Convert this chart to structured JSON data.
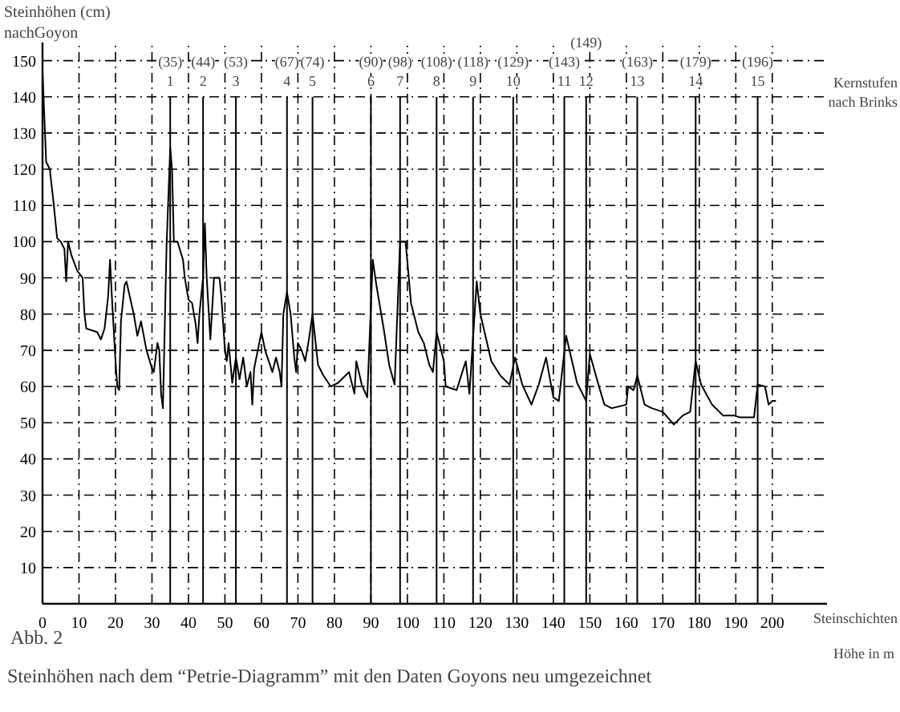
{
  "chart_data": {
    "type": "line",
    "ylabel": "Steinhöhen (cm)\nnachGoyon",
    "xlabel": "Steinschichten",
    "annotations": [
      "Kernstufen\nnach Brinks",
      "Höhe in m",
      "Abb. 2",
      "Steinhöhen nach dem “Petrie-Diagramm” mit den Daten Goyons neu umgezeichnet"
    ],
    "x": [
      0,
      1,
      2,
      3,
      4,
      5,
      6,
      6.5,
      7,
      8,
      9.5,
      11,
      11.5,
      12,
      15,
      16,
      17,
      18,
      18.5,
      19,
      20,
      20.5,
      21,
      21.5,
      22.5,
      23,
      25,
      26,
      27,
      28.5,
      30,
      30.5,
      31.5,
      32,
      32.5,
      33,
      34,
      35,
      35.5,
      36,
      37,
      38.5,
      39,
      40,
      41,
      42,
      42.5,
      43,
      44,
      44.5,
      45,
      46,
      47,
      48.5,
      49,
      50,
      50.5,
      51,
      52,
      53,
      54,
      55,
      56,
      57,
      57.5,
      58,
      59,
      60,
      61,
      62,
      63,
      64,
      65,
      65.5,
      66,
      67,
      68,
      69,
      69.5,
      70,
      71,
      72,
      73,
      74,
      75.5,
      77,
      79,
      81,
      84,
      85.5,
      86,
      87.5,
      89,
      90.5,
      91.5,
      93.5,
      95,
      96.5,
      98,
      99.5,
      101,
      103,
      104.5,
      106,
      107,
      108,
      110,
      110.5,
      113.5,
      116,
      117,
      119,
      120,
      123,
      125.5,
      128,
      129.5,
      131.5,
      134,
      136,
      138,
      140,
      141.5,
      143.5,
      146.5,
      149,
      150,
      152.5,
      154,
      156,
      160,
      160.5,
      162,
      163,
      165,
      167,
      170,
      173,
      175.5,
      177.5,
      179,
      180.5,
      183.5,
      186.5,
      189.5,
      191,
      195,
      196,
      198,
      199,
      200,
      201
    ],
    "series": [
      {
        "color": "#000000",
        "values": [
          147,
          122,
          120,
          111,
          101,
          100,
          98,
          89,
          100,
          96,
          92,
          90,
          80,
          76,
          75,
          73,
          76,
          85,
          95,
          85,
          67,
          60,
          59,
          78,
          88,
          89,
          80,
          74,
          78,
          70,
          65,
          64,
          72,
          70,
          58,
          54,
          99,
          126,
          120,
          100,
          100,
          95,
          90,
          84,
          83,
          77,
          72,
          80,
          90,
          105,
          90,
          73,
          90,
          90,
          85,
          70,
          67,
          72,
          61,
          68,
          62,
          68,
          60,
          64,
          55,
          65,
          70,
          75,
          70,
          67,
          64,
          68,
          64,
          60,
          80,
          86,
          80,
          68,
          64,
          72,
          70,
          67,
          73,
          80,
          66,
          63,
          60,
          61,
          64,
          58,
          67,
          60.5,
          57,
          95,
          88,
          76,
          66,
          60.5,
          100,
          100,
          83,
          75,
          72,
          66,
          64,
          75,
          67,
          60,
          59,
          67,
          58,
          89,
          80,
          67,
          63,
          60.5,
          68,
          60.5,
          55,
          60.5,
          68,
          57,
          56,
          74,
          61,
          56,
          69,
          60,
          55,
          54,
          55,
          60,
          59,
          63,
          55,
          54,
          53,
          49.5,
          52,
          53,
          67,
          60.5,
          55,
          52,
          52,
          51.5,
          51.5,
          60.5,
          60,
          55,
          56,
          56
        ]
      }
    ],
    "xlim": [
      0,
      215
    ],
    "ylim": [
      0,
      155
    ],
    "xticks": [
      0,
      10,
      20,
      30,
      40,
      50,
      60,
      70,
      80,
      90,
      100,
      110,
      120,
      130,
      140,
      150,
      160,
      170,
      180,
      190,
      200
    ],
    "yticks": [
      10,
      20,
      30,
      40,
      50,
      60,
      70,
      80,
      90,
      100,
      110,
      120,
      130,
      140,
      150
    ],
    "grid": true,
    "marker": "none",
    "line_style": "solid",
    "ref_lines": [
      {
        "axis": "x",
        "value": 35,
        "label": "(35)\n1"
      },
      {
        "axis": "x",
        "value": 44,
        "label": "(44)\n2"
      },
      {
        "axis": "x",
        "value": 53,
        "label": "(53)\n3"
      },
      {
        "axis": "x",
        "value": 67,
        "label": "(67)\n4"
      },
      {
        "axis": "x",
        "value": 74,
        "label": "(74)\n5"
      },
      {
        "axis": "x",
        "value": 90,
        "label": "(90)\n6"
      },
      {
        "axis": "x",
        "value": 98,
        "label": "(98)\n7"
      },
      {
        "axis": "x",
        "value": 108,
        "label": "(108)\n8"
      },
      {
        "axis": "x",
        "value": 118,
        "label": "(118)\n9"
      },
      {
        "axis": "x",
        "value": 129,
        "label": "(129)\n10"
      },
      {
        "axis": "x",
        "value": 143,
        "label": "(143)\n11"
      },
      {
        "axis": "x",
        "value": 149,
        "label": "(149)\n12"
      },
      {
        "axis": "x",
        "value": 163,
        "label": "(163)\n13"
      },
      {
        "axis": "x",
        "value": 179,
        "label": "(179)\n14"
      },
      {
        "axis": "x",
        "value": 196,
        "label": "(196)\n15"
      }
    ]
  }
}
